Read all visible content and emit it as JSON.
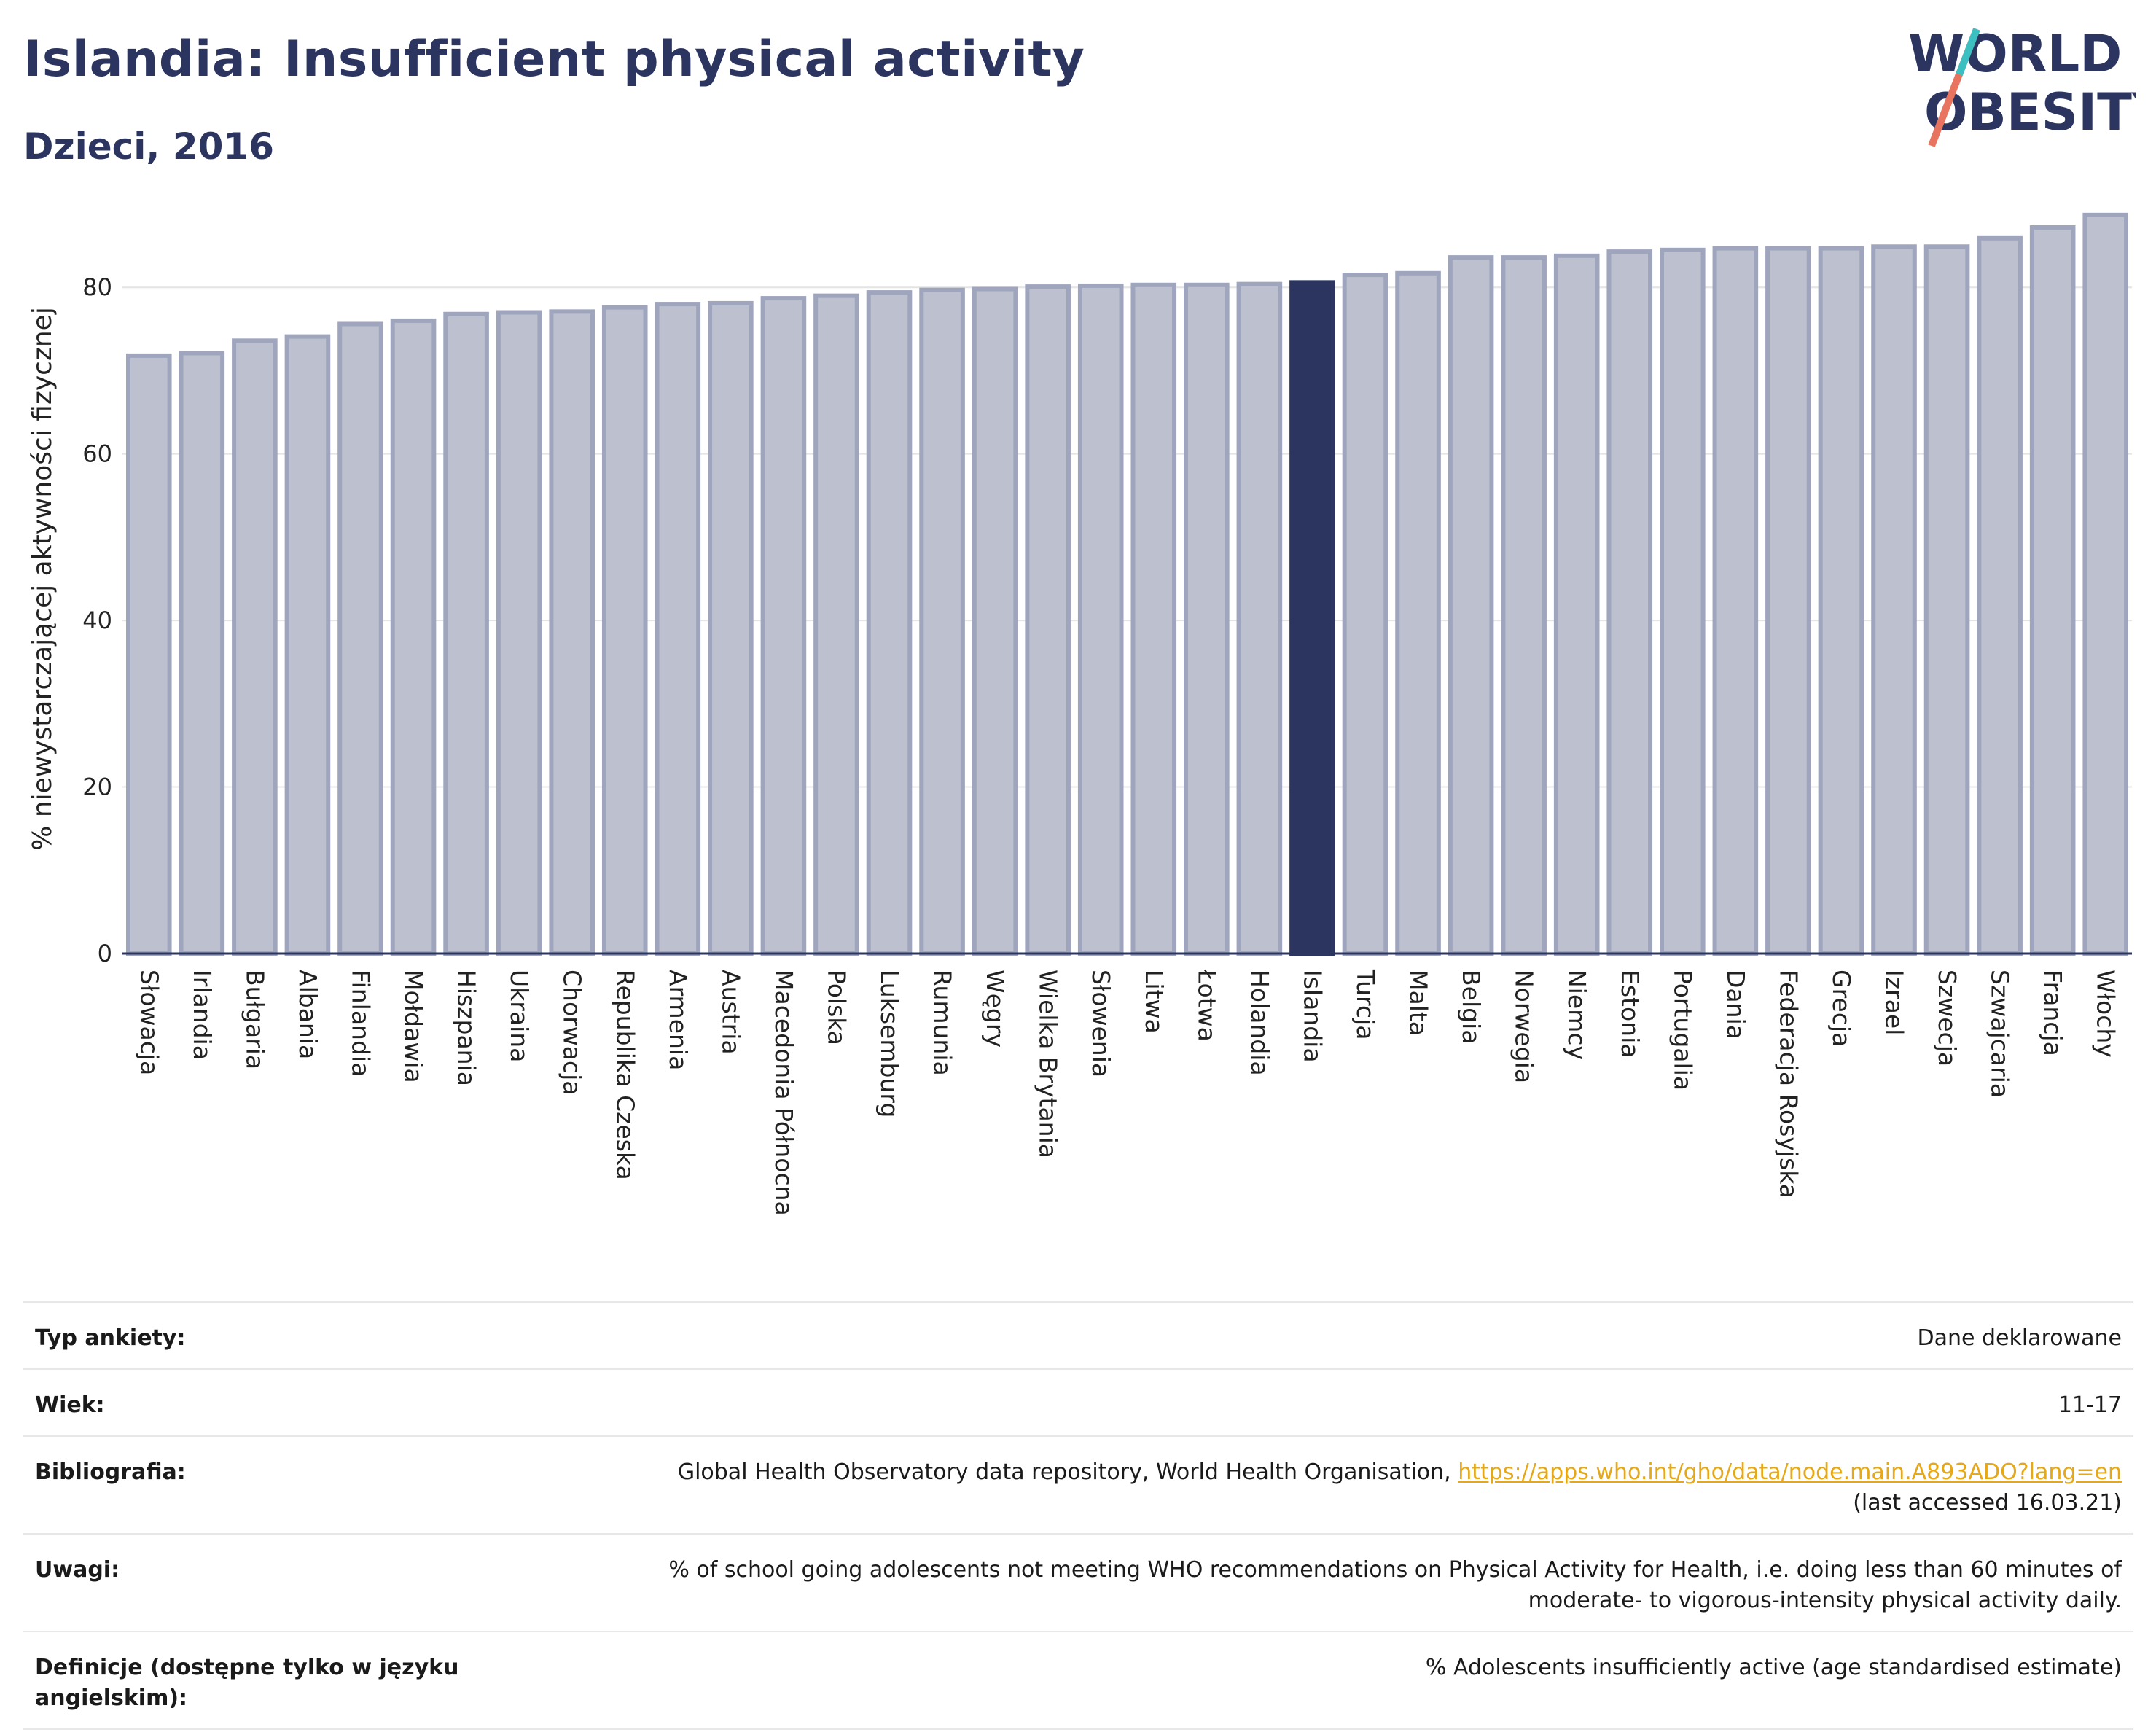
{
  "header": {
    "title": "Islandia: Insufficient physical activity",
    "subtitle": "Dzieci, 2016"
  },
  "logo": {
    "line1": "WORLD",
    "line2": "OBESITY"
  },
  "colors": {
    "highlight": "#2b3560",
    "bar_fill": "#bcc0cf",
    "bar_stroke": "#9fa5bd",
    "logo_teal": "#3bbfc1",
    "logo_coral": "#e8735f",
    "link": "#e6a817"
  },
  "chart_data": {
    "type": "bar",
    "ylabel": "% niewystarczającej aktywności fizycznej",
    "ylim": [
      0,
      90
    ],
    "yticks": [
      0,
      20,
      40,
      60,
      80
    ],
    "grid": true,
    "highlight": "Islandia",
    "categories": [
      "Słowacja",
      "Irlandia",
      "Bułgaria",
      "Albania",
      "Finlandia",
      "Mołdawia",
      "Hiszpania",
      "Ukraina",
      "Chorwacja",
      "Republika Czeska",
      "Armenia",
      "Austria",
      "Macedonia Północna",
      "Polska",
      "Luksemburg",
      "Rumunia",
      "Węgry",
      "Wielka Brytania",
      "Słowenia",
      "Litwa",
      "Łotwa",
      "Holandia",
      "Islandia",
      "Turcja",
      "Malta",
      "Belgia",
      "Norwegia",
      "Niemcy",
      "Estonia",
      "Portugalia",
      "Dania",
      "Federacja Rosyjska",
      "Grecja",
      "Izrael",
      "Szwecja",
      "Szwajcaria",
      "Francja",
      "Włochy"
    ],
    "values": [
      71.8,
      72.1,
      73.6,
      74.1,
      75.6,
      76.0,
      76.8,
      77.0,
      77.1,
      77.6,
      78.0,
      78.1,
      78.7,
      79.0,
      79.4,
      79.7,
      79.8,
      80.1,
      80.2,
      80.3,
      80.3,
      80.4,
      80.6,
      81.5,
      81.7,
      83.6,
      83.6,
      83.8,
      84.3,
      84.5,
      84.7,
      84.7,
      84.7,
      84.9,
      84.9,
      85.9,
      87.2,
      88.7
    ]
  },
  "info": {
    "rows": [
      {
        "label": "Typ ankiety:",
        "value": "Dane deklarowane"
      },
      {
        "label": "Wiek:",
        "value": "11-17"
      },
      {
        "label": "Bibliografia:",
        "value": "Global Health Observatory data repository, World Health Organisation,",
        "link": "https://apps.who.int/gho/data/node.main.A893ADO?lang=en",
        "value2": "(last accessed 16.03.21)"
      },
      {
        "label": "Uwagi:",
        "value": "% of school going adolescents not meeting WHO recommendations on Physical Activity for Health, i.e. doing less than 60 minutes of moderate- to vigorous-intensity physical activity daily."
      },
      {
        "label": "Definicje (dostępne tylko w języku angielskim):",
        "value": "% Adolescents insufficiently active (age standardised estimate)"
      }
    ]
  }
}
